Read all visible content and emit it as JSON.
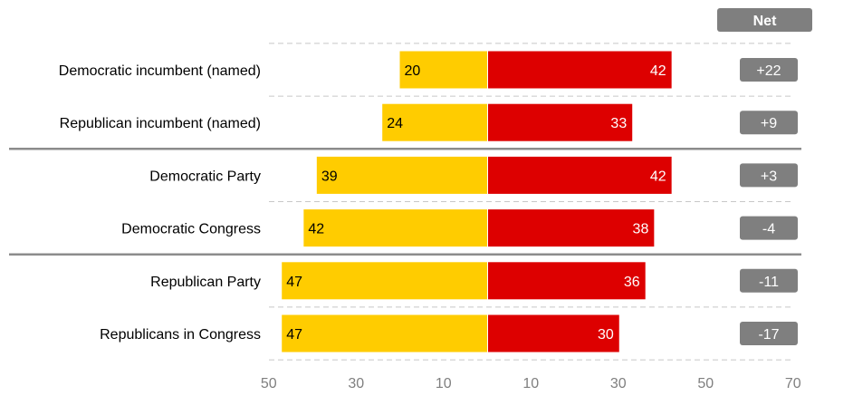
{
  "chart_data": {
    "type": "bar",
    "orientation": "horizontal-diverging",
    "title": "",
    "xlabel": "",
    "ylabel": "",
    "categories": [
      "Democratic incumbent (named)",
      "Republican incumbent (named)",
      "Democratic Party",
      "Democratic Congress",
      "Republican Party",
      "Republicans in Congress"
    ],
    "series": [
      {
        "side": "left",
        "color": "#FFCC00",
        "values": [
          20,
          24,
          39,
          42,
          47,
          47
        ]
      },
      {
        "side": "right",
        "color": "#DD0000",
        "values": [
          42,
          33,
          42,
          38,
          36,
          30
        ]
      }
    ],
    "net": {
      "header": "Net",
      "values": [
        "+22",
        "+9",
        "+3",
        "-4",
        "-11",
        "-17"
      ]
    },
    "x_ticks_left": [
      50,
      30,
      10
    ],
    "x_ticks_right": [
      10,
      30,
      50,
      70
    ],
    "xlim_left": [
      0,
      50
    ],
    "xlim_right": [
      0,
      70
    ],
    "group_separators_after": [
      1,
      3
    ],
    "grid": false,
    "colors": {
      "net_box": "#7F7F7F",
      "separator": "#8C8C8C",
      "dashed": "#C8C8C8",
      "tick_text": "#7F7F7F"
    }
  }
}
